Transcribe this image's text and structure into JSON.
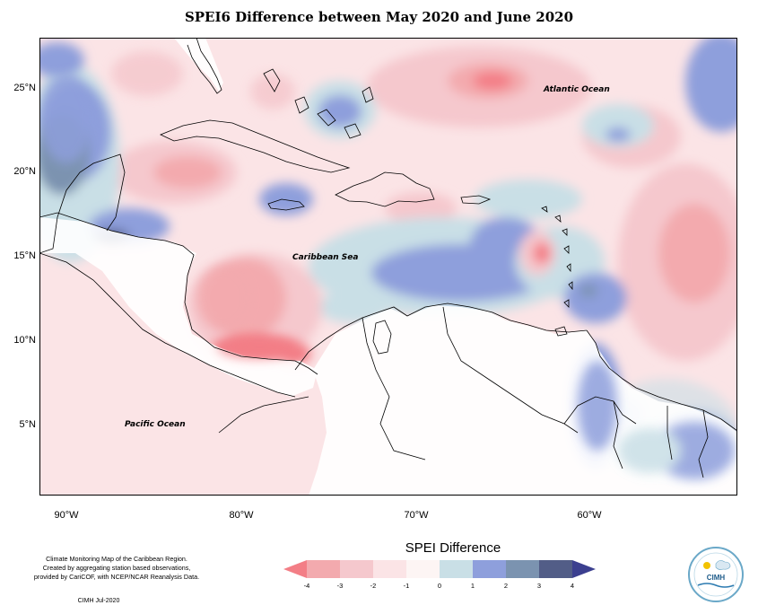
{
  "title": "SPEI6 Difference between May 2020 and June 2020",
  "map": {
    "y_ticks": [
      "25°N",
      "20°N",
      "15°N",
      "10°N",
      "5°N"
    ],
    "x_ticks": [
      "90°W",
      "80°W",
      "70°W",
      "60°W"
    ],
    "labels": {
      "atlantic": "Atlantic Ocean",
      "caribbean": "Caribbean Sea",
      "pacific": "Pacific Ocean"
    }
  },
  "legend": {
    "title": "SPEI Difference",
    "ticks": [
      "-4",
      "-3",
      "-2",
      "-1",
      "0",
      "1",
      "2",
      "3",
      "4"
    ],
    "colors": [
      "#f37e86",
      "#f3aaae",
      "#f5c8cd",
      "#fbe4e6",
      "#fdf5f4",
      "#c9dfe6",
      "#8e9fdc",
      "#7b93b0",
      "#525d87",
      "#3b3f8f"
    ]
  },
  "credits": {
    "line1": "Climate Monitoring Map of the Caribbean Region.",
    "line2": "Created by aggregating station based observations,",
    "line3": "provided by CariCOF, with NCEP/NCAR Reanalysis Data.",
    "date": "CIMH  Jul-2020"
  },
  "logo": {
    "text": "CIMH"
  }
}
